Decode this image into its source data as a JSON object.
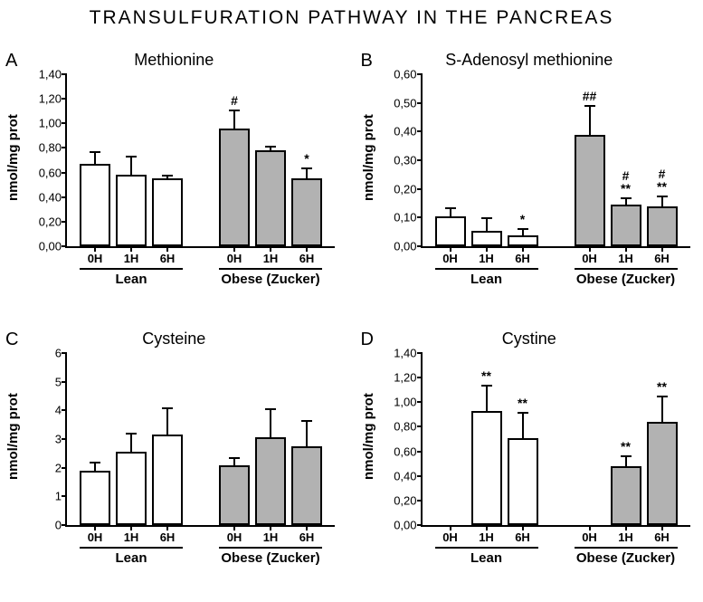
{
  "main_title": "TRANSULFURATION  PATHWAY IN THE PANCREAS",
  "ylabel_text": "nmol/mg prot",
  "group_labels": {
    "lean": "Lean",
    "obese": "Obese (Zucker)"
  },
  "x_categories": [
    "0H",
    "1H",
    "6H"
  ],
  "bar_colors": {
    "lean": "#ffffff",
    "obese": "#b2b2b2"
  },
  "border_color": "#000000",
  "label_fontsize": 15,
  "tick_fontsize": 13,
  "title_fontsize": 18,
  "panels": {
    "A": {
      "letter": "A",
      "title": "Methionine",
      "ymax": 1.4,
      "ytick_step": 0.2,
      "decimals": 2,
      "decimal_sep": ",",
      "bars": [
        {
          "group": "lean",
          "cat": "0H",
          "value": 0.67,
          "err": 0.09,
          "sig": ""
        },
        {
          "group": "lean",
          "cat": "1H",
          "value": 0.58,
          "err": 0.14,
          "sig": ""
        },
        {
          "group": "lean",
          "cat": "6H",
          "value": 0.55,
          "err": 0.02,
          "sig": ""
        },
        {
          "group": "obese",
          "cat": "0H",
          "value": 0.96,
          "err": 0.14,
          "sig": "#"
        },
        {
          "group": "obese",
          "cat": "1H",
          "value": 0.78,
          "err": 0.02,
          "sig": ""
        },
        {
          "group": "obese",
          "cat": "6H",
          "value": 0.55,
          "err": 0.08,
          "sig": "*"
        }
      ]
    },
    "B": {
      "letter": "B",
      "title": "S-Adenosyl methionine",
      "ymax": 0.6,
      "ytick_step": 0.1,
      "decimals": 2,
      "decimal_sep": ",",
      "bars": [
        {
          "group": "lean",
          "cat": "0H",
          "value": 0.105,
          "err": 0.025,
          "sig": ""
        },
        {
          "group": "lean",
          "cat": "1H",
          "value": 0.053,
          "err": 0.042,
          "sig": ""
        },
        {
          "group": "lean",
          "cat": "6H",
          "value": 0.038,
          "err": 0.018,
          "sig": "*"
        },
        {
          "group": "obese",
          "cat": "0H",
          "value": 0.39,
          "err": 0.095,
          "sig": "##"
        },
        {
          "group": "obese",
          "cat": "1H",
          "value": 0.145,
          "err": 0.02,
          "sig": "#\n**"
        },
        {
          "group": "obese",
          "cat": "6H",
          "value": 0.14,
          "err": 0.03,
          "sig": "#\n**"
        }
      ]
    },
    "C": {
      "letter": "C",
      "title": "Cysteine",
      "ymax": 6,
      "ytick_step": 1,
      "decimals": 0,
      "decimal_sep": ",",
      "bars": [
        {
          "group": "lean",
          "cat": "0H",
          "value": 1.9,
          "err": 0.25,
          "sig": ""
        },
        {
          "group": "lean",
          "cat": "1H",
          "value": 2.55,
          "err": 0.6,
          "sig": ""
        },
        {
          "group": "lean",
          "cat": "6H",
          "value": 3.15,
          "err": 0.9,
          "sig": ""
        },
        {
          "group": "obese",
          "cat": "0H",
          "value": 2.1,
          "err": 0.2,
          "sig": ""
        },
        {
          "group": "obese",
          "cat": "1H",
          "value": 3.05,
          "err": 0.95,
          "sig": ""
        },
        {
          "group": "obese",
          "cat": "6H",
          "value": 2.75,
          "err": 0.85,
          "sig": ""
        }
      ]
    },
    "D": {
      "letter": "D",
      "title": "Cystine",
      "ymax": 1.4,
      "ytick_step": 0.2,
      "decimals": 2,
      "decimal_sep": ",",
      "bars": [
        {
          "group": "lean",
          "cat": "0H",
          "value": 0.0,
          "err": 0.0,
          "sig": ""
        },
        {
          "group": "lean",
          "cat": "1H",
          "value": 0.93,
          "err": 0.2,
          "sig": "**"
        },
        {
          "group": "lean",
          "cat": "6H",
          "value": 0.71,
          "err": 0.2,
          "sig": "**"
        },
        {
          "group": "obese",
          "cat": "0H",
          "value": 0.0,
          "err": 0.0,
          "sig": ""
        },
        {
          "group": "obese",
          "cat": "1H",
          "value": 0.48,
          "err": 0.07,
          "sig": "**"
        },
        {
          "group": "obese",
          "cat": "6H",
          "value": 0.84,
          "err": 0.2,
          "sig": "**"
        }
      ]
    }
  }
}
